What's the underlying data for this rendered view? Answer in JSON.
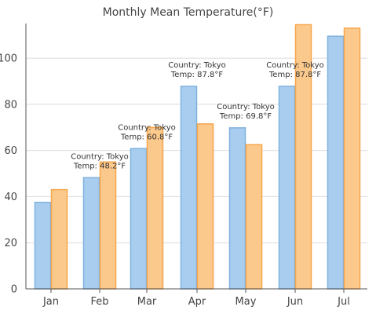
{
  "chart_data": {
    "type": "bar",
    "title": "Monthly Mean Temperature(°F)",
    "xlabel": "",
    "ylabel": "",
    "categories": [
      "Jan",
      "Feb",
      "Mar",
      "Apr",
      "May",
      "Jun",
      "Jul"
    ],
    "ylim": [
      0,
      115
    ],
    "yticks": [
      0,
      20,
      40,
      60,
      80,
      100
    ],
    "grid": true,
    "legend": "none",
    "series": [
      {
        "values": [
          37.5,
          48.2,
          60.8,
          87.8,
          69.8,
          87.8,
          109.5
        ],
        "color": "#a9cdee",
        "stroke": "#7fb1df"
      },
      {
        "values": [
          43,
          55,
          70,
          71.5,
          62.5,
          114.5,
          113
        ],
        "color": "#fcc98c",
        "stroke": "#f5a64c"
      }
    ],
    "annotations": [
      {
        "series": 0,
        "index": 1,
        "lines": [
          "Country: Tokyo",
          "Temp: 48.2°F"
        ]
      },
      {
        "series": 0,
        "index": 2,
        "lines": [
          "Country: Tokyo",
          "Temp: 60.8°F"
        ]
      },
      {
        "series": 0,
        "index": 3,
        "lines": [
          "Country: Tokyo",
          "Temp: 87.8°F"
        ]
      },
      {
        "series": 0,
        "index": 4,
        "lines": [
          "Country: Tokyo",
          "Temp: 69.8°F"
        ]
      },
      {
        "series": 0,
        "index": 5,
        "lines": [
          "Country: Tokyo",
          "Temp: 87.8°F"
        ]
      }
    ]
  }
}
